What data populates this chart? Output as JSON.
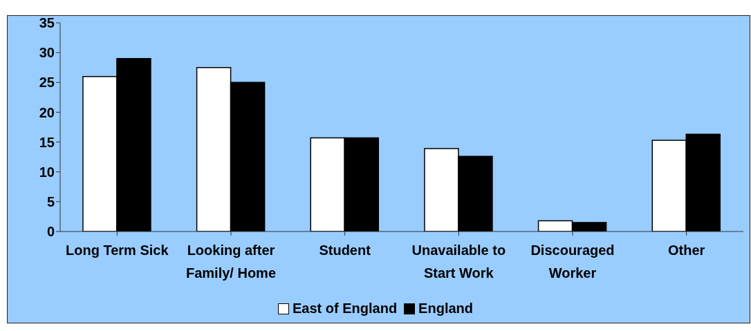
{
  "chart_data": {
    "type": "bar",
    "categories": [
      "Long Term Sick",
      "Looking after Family/ Home",
      "Student",
      "Unavailable to Start Work",
      "Discouraged Worker",
      "Other"
    ],
    "series": [
      {
        "name": "East of England",
        "color": "#ffffff",
        "values": [
          26,
          27.5,
          15.7,
          13.9,
          1.8,
          15.3
        ]
      },
      {
        "name": "England",
        "color": "#000000",
        "values": [
          29,
          25,
          15.7,
          12.6,
          1.5,
          16.3
        ]
      }
    ],
    "ylim": [
      0,
      35
    ],
    "yticks": [
      0,
      5,
      10,
      15,
      20,
      25,
      30,
      35
    ],
    "grid": false,
    "legend": "bottom"
  }
}
